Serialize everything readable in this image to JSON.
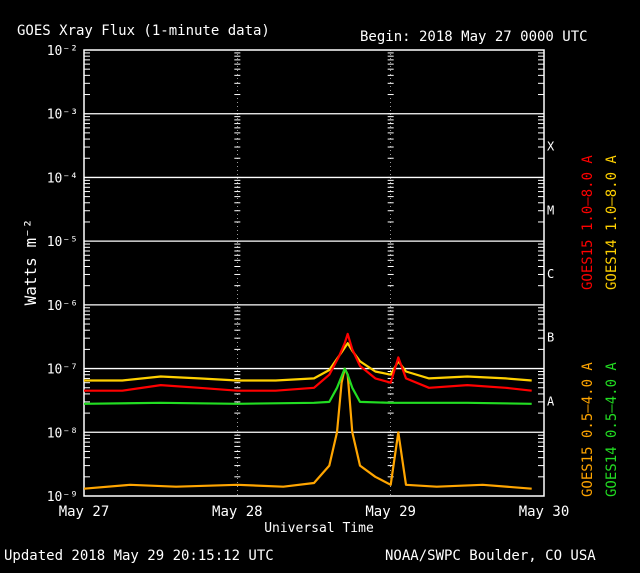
{
  "header": {
    "title": "GOES Xray Flux (1-minute data)",
    "begin": "Begin:  2018 May 27 0000 UTC"
  },
  "footer": {
    "updated": "Updated 2018 May 29 20:15:12 UTC",
    "source": "NOAA/SWPC Boulder, CO USA"
  },
  "colors": {
    "grid": "#ffffff",
    "goes15_long": "#ff0000",
    "goes14_long": "#ffd000",
    "goes15_short": "#ffa500",
    "goes14_short": "#22dd22"
  },
  "chart_data": {
    "type": "line",
    "title": "GOES Xray Flux (1-minute data)",
    "ylabel": "Watts m⁻²",
    "xlabel": "Universal Time",
    "yscale": "log",
    "ylim": [
      1e-09,
      0.01
    ],
    "xlim_days": [
      0,
      3
    ],
    "y_ticks": [
      {
        "value": 0.01,
        "label": "10⁻²"
      },
      {
        "value": 0.001,
        "label": "10⁻³"
      },
      {
        "value": 0.0001,
        "label": "10⁻⁴"
      },
      {
        "value": 1e-05,
        "label": "10⁻⁵"
      },
      {
        "value": 1e-06,
        "label": "10⁻⁶"
      },
      {
        "value": 1e-07,
        "label": "10⁻⁷"
      },
      {
        "value": 1e-08,
        "label": "10⁻⁸"
      },
      {
        "value": 1e-09,
        "label": "10⁻⁹"
      }
    ],
    "x_ticks": [
      {
        "day": 0,
        "label": "May 27"
      },
      {
        "day": 1,
        "label": "May 28"
      },
      {
        "day": 2,
        "label": "May 29"
      },
      {
        "day": 3,
        "label": "May 30"
      }
    ],
    "flare_classes": [
      {
        "label": "X",
        "value": 0.0001
      },
      {
        "label": "M",
        "value": 1e-05
      },
      {
        "label": "C",
        "value": 1e-06
      },
      {
        "label": "B",
        "value": 1e-07
      },
      {
        "label": "A",
        "value": 1e-08
      }
    ],
    "legend_placement": "right, vertical",
    "legend": [
      {
        "key": "goes15_long",
        "name": "GOES15 1.0–8.0 A"
      },
      {
        "key": "goes14_long",
        "name": "GOES14 1.0–8.0 A"
      },
      {
        "key": "goes15_short",
        "name": "GOES15 0.5–4.0 A"
      },
      {
        "key": "goes14_short",
        "name": "GOES14 0.5–4.0 A"
      }
    ],
    "series": [
      {
        "key": "goes14_long",
        "name": "GOES14 1.0–8.0 A",
        "x_days": [
          0,
          0.25,
          0.5,
          0.75,
          1.0,
          1.25,
          1.5,
          1.6,
          1.68,
          1.72,
          1.75,
          1.8,
          1.9,
          2.0,
          2.05,
          2.1,
          2.25,
          2.5,
          2.75,
          2.92
        ],
        "y": [
          6.5e-08,
          6.5e-08,
          7.5e-08,
          7e-08,
          6.5e-08,
          6.5e-08,
          7e-08,
          9.5e-08,
          1.8e-07,
          2.5e-07,
          1.9e-07,
          1.3e-07,
          9e-08,
          8e-08,
          1.3e-07,
          9e-08,
          7e-08,
          7.5e-08,
          7e-08,
          6.5e-08
        ]
      },
      {
        "key": "goes15_long",
        "name": "GOES15 1.0–8.0 A",
        "x_days": [
          0,
          0.25,
          0.5,
          0.75,
          1.0,
          1.25,
          1.5,
          1.6,
          1.66,
          1.7,
          1.72,
          1.75,
          1.8,
          1.9,
          2.0,
          2.05,
          2.1,
          2.25,
          2.5,
          2.75,
          2.92
        ],
        "y": [
          4.5e-08,
          4.5e-08,
          5.5e-08,
          5e-08,
          4.5e-08,
          4.5e-08,
          5e-08,
          8e-08,
          1.5e-07,
          2.5e-07,
          3.5e-07,
          2e-07,
          1.1e-07,
          7e-08,
          6e-08,
          1.5e-07,
          7e-08,
          5e-08,
          5.5e-08,
          5e-08,
          4.5e-08
        ]
      },
      {
        "key": "goes14_short",
        "name": "GOES14 0.5–4.0 A",
        "x_days": [
          0,
          0.5,
          1.0,
          1.5,
          1.6,
          1.65,
          1.7,
          1.72,
          1.75,
          1.8,
          2.0,
          2.5,
          2.92
        ],
        "y": [
          2.8e-08,
          2.9e-08,
          2.8e-08,
          2.9e-08,
          3e-08,
          5e-08,
          1e-07,
          8e-08,
          5e-08,
          3e-08,
          2.9e-08,
          2.9e-08,
          2.8e-08
        ]
      },
      {
        "key": "goes15_short",
        "name": "GOES15 0.5–4.0 A",
        "x_days": [
          0,
          0.3,
          0.6,
          1.0,
          1.3,
          1.5,
          1.6,
          1.65,
          1.68,
          1.7,
          1.72,
          1.75,
          1.8,
          1.9,
          2.0,
          2.05,
          2.1,
          2.3,
          2.6,
          2.92
        ],
        "y": [
          1.3e-09,
          1.5e-09,
          1.4e-09,
          1.5e-09,
          1.4e-09,
          1.6e-09,
          3e-09,
          1e-08,
          6e-08,
          1e-07,
          8e-08,
          1e-08,
          3e-09,
          2e-09,
          1.5e-09,
          1e-08,
          1.5e-09,
          1.4e-09,
          1.5e-09,
          1.3e-09
        ]
      }
    ]
  }
}
